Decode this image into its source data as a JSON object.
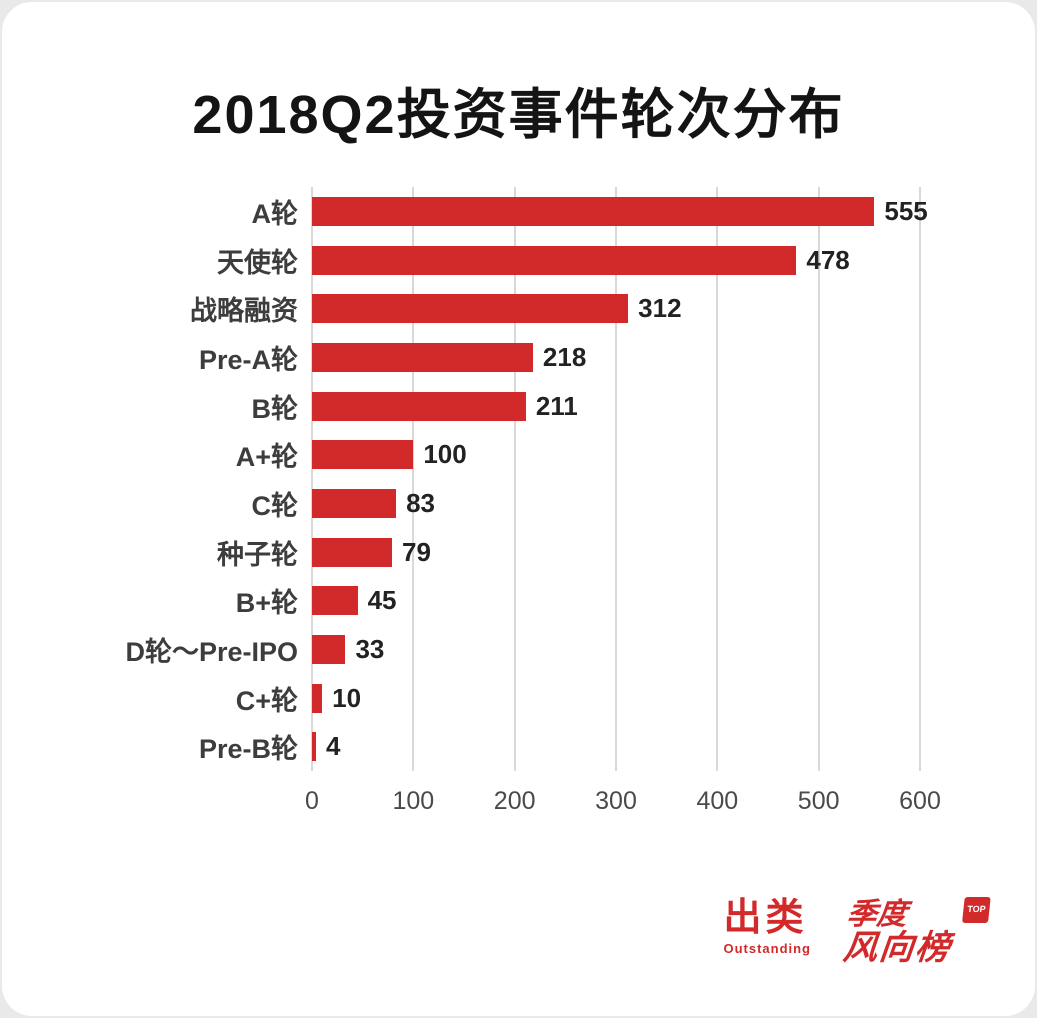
{
  "title": "2018Q2投资事件轮次分布",
  "chart_data": {
    "type": "bar",
    "orientation": "horizontal",
    "title": "2018Q2投资事件轮次分布",
    "categories": [
      "A轮",
      "天使轮",
      "战略融资",
      "Pre-A轮",
      "B轮",
      "A+轮",
      "C轮",
      "种子轮",
      "B+轮",
      "D轮～Pre-IPO",
      "C+轮",
      "Pre-B轮"
    ],
    "values": [
      555,
      478,
      312,
      218,
      211,
      100,
      83,
      79,
      45,
      33,
      10,
      4
    ],
    "xlim": [
      0,
      600
    ],
    "x_ticks": [
      "0",
      "100",
      "200",
      "300",
      "400",
      "500",
      "600"
    ],
    "xlabel": "",
    "ylabel": "",
    "grid": true,
    "legend": "none",
    "data_labels": true
  },
  "colors": {
    "bar": "#d2292b",
    "accent": "#d2292b",
    "grid": "#d9d9d9",
    "title_text": "#141414",
    "label_text": "#3d3d3d"
  },
  "footer": {
    "brand1": {
      "name": "出类",
      "subtitle": "Outstanding"
    },
    "brand2": {
      "line1": "季度",
      "line2": "风向榜",
      "badge": "TOP"
    }
  }
}
